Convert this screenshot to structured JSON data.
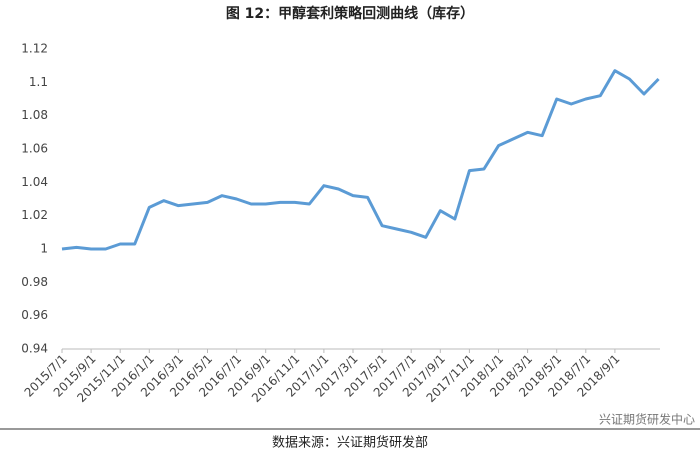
{
  "chart_data": {
    "type": "line",
    "title": "图 12：甲醇套利策略回测曲线（库存）",
    "source": "数据来源：兴证期货研发部",
    "watermark": "兴证期货研发中心",
    "categories": [
      "2015/7/1",
      null,
      "2015/9/1",
      null,
      "2015/11/1",
      null,
      "2016/1/1",
      null,
      "2016/3/1",
      null,
      "2016/5/1",
      null,
      "2016/7/1",
      null,
      "2016/9/1",
      null,
      "2016/11/1",
      null,
      "2017/1/1",
      null,
      "2017/3/1",
      null,
      "2017/5/1",
      null,
      "2017/7/1",
      null,
      "2017/9/1",
      null,
      "2017/11/1",
      null,
      "2018/1/1",
      null,
      "2018/3/1",
      null,
      "2018/5/1",
      null,
      "2018/7/1",
      null,
      "2018/9/1",
      null,
      null,
      null
    ],
    "series": [
      {
        "color": "#5b9bd5",
        "values": [
          1.0,
          1.001,
          1.0,
          1.0,
          1.003,
          1.003,
          1.025,
          1.029,
          1.026,
          1.027,
          1.028,
          1.032,
          1.03,
          1.027,
          1.027,
          1.028,
          1.028,
          1.027,
          1.038,
          1.036,
          1.032,
          1.031,
          1.014,
          1.012,
          1.01,
          1.007,
          1.023,
          1.018,
          1.047,
          1.048,
          1.062,
          1.066,
          1.07,
          1.068,
          1.09,
          1.087,
          1.09,
          1.092,
          1.107,
          1.102,
          1.093,
          1.102
        ]
      }
    ],
    "ylim": [
      0.94,
      1.12
    ],
    "yticks": [
      0.94,
      0.96,
      0.98,
      1,
      1.02,
      1.04,
      1.06,
      1.08,
      1.1,
      1.12
    ],
    "grid": false
  }
}
